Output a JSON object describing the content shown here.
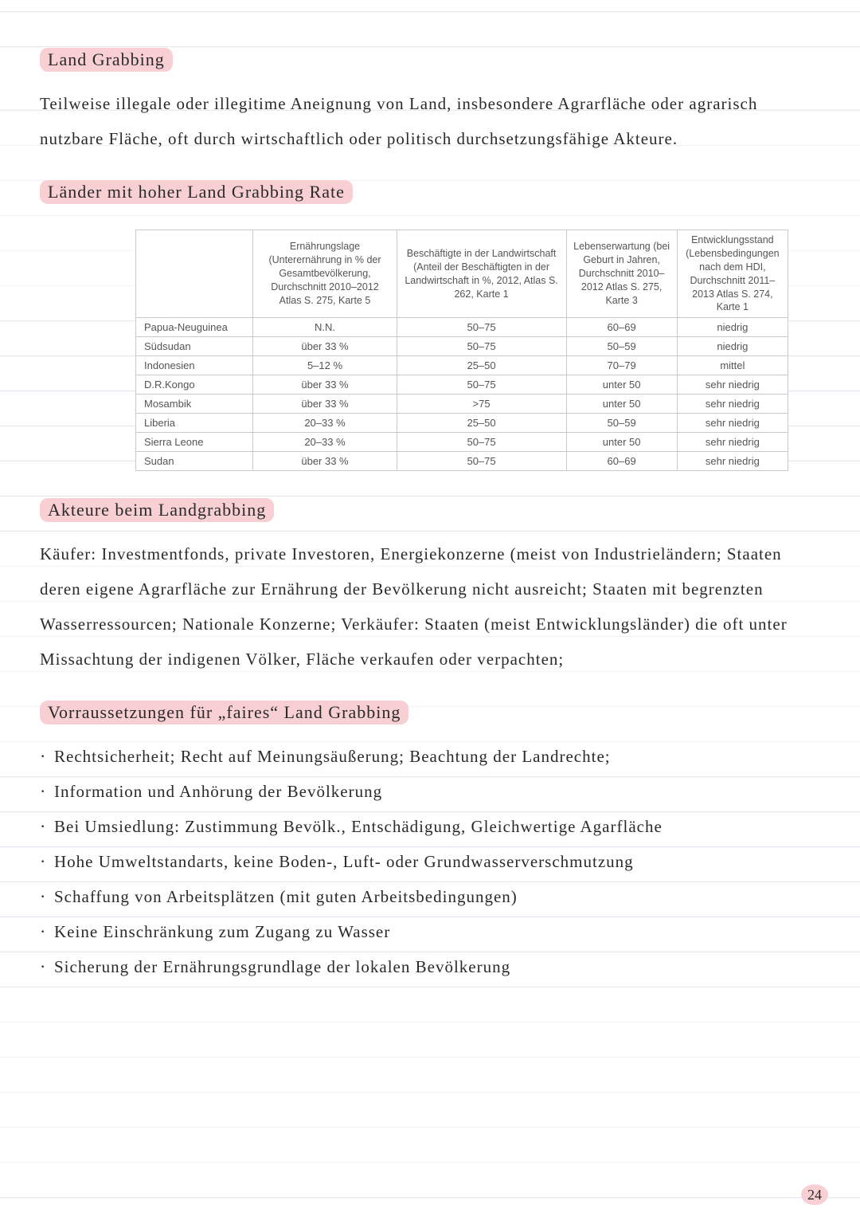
{
  "colors": {
    "highlight": "#f8d0d4",
    "text": "#2a2a2a",
    "tableBorder": "#c9c9c9",
    "tableText": "#555555",
    "ruleLine": "#e8e8f0",
    "background": "#ffffff"
  },
  "typography": {
    "body_font": "Comic Sans MS / handwriting",
    "body_size_pt": 16,
    "table_font": "Segoe UI / sans-serif",
    "table_size_pt": 10
  },
  "page": {
    "number": "24"
  },
  "s1": {
    "title": "Land Grabbing",
    "body": "Teilweise illegale oder illegitime Aneignung von Land, insbesondere Agrar­fläche oder agrarisch nutzbare Fläche, oft durch wirtschaftlich oder politisch durchsetzungsfähige Akteure."
  },
  "s2": {
    "title": "Länder mit hoher Land Grabbing Rate",
    "table": {
      "columns": [
        "",
        "Ernährungslage (Unterernährung in % der Gesamtbevölkerung, Durchschnitt 2010–2012 Atlas S. 275, Karte 5",
        "Beschäftigte in der Landwirtschaft (Anteil der Beschäftigten in der Landwirtschaft in %, 2012, Atlas S. 262, Karte 1",
        "Lebenserwartung (bei Geburt in Jahren, Durchschnitt 2010–2012 Atlas S. 275, Karte 3",
        "Entwicklungsstand (Lebensbedingungen nach dem HDI, Durchschnitt 2011–2013 Atlas S. 274, Karte 1"
      ],
      "col_widths_pct": [
        18,
        22,
        26,
        17,
        17
      ],
      "rows": [
        [
          "Papua-Neuguinea",
          "N.N.",
          "50–75",
          "60–69",
          "niedrig"
        ],
        [
          "Südsudan",
          "über 33 %",
          "50–75",
          "50–59",
          "niedrig"
        ],
        [
          "Indonesien",
          "5–12 %",
          "25–50",
          "70–79",
          "mittel"
        ],
        [
          "D.R.Kongo",
          "über 33 %",
          "50–75",
          "unter 50",
          "sehr niedrig"
        ],
        [
          "Mosambik",
          "über 33 %",
          ">75",
          "unter 50",
          "sehr niedrig"
        ],
        [
          "Liberia",
          "20–33 %",
          "25–50",
          "50–59",
          "sehr niedrig"
        ],
        [
          "Sierra Leone",
          "20–33 %",
          "50–75",
          "unter 50",
          "sehr niedrig"
        ],
        [
          "Sudan",
          "über 33 %",
          "50–75",
          "60–69",
          "sehr niedrig"
        ]
      ]
    }
  },
  "s3": {
    "title": "Akteure beim Landgrabbing",
    "body": "Käufer: Investmentfonds, private Investoren, Energiekonzerne (meist von In­dustrieländern; Staaten deren eigene Agrarfläche zur Ernährung der Bevölkerung nicht ausreicht; Staaten mit begrenzten Wasserressourcen; Nationale Konzerne; Verkäufer: Staaten (meist Entwicklungsländer) die oft unter Missachtung der indigenen Völker, Fläche verkaufen oder verpachten;"
  },
  "s4": {
    "title": "Vorraussetzungen für „faires“ Land Grabbing",
    "items": [
      "Rechtsicherheit; Recht auf Meinungsäußerung; Beachtung der Landrechte;",
      "Information und Anhörung der Bevölkerung",
      "Bei Umsiedlung: Zustimmung Bevölk., Entschädigung, Gleichwertige Agarfläche",
      "Hohe Umweltstandarts, keine Boden-, Luft- oder Grundwasserverschmutzung",
      "Schaffung von Arbeitsplätzen (mit guten Arbeitsbedingungen)",
      "Keine Einschränkung zum Zugang zu Wasser",
      "Sicherung der Ernährungsgrundlage der lokalen Bevölkerung"
    ]
  }
}
